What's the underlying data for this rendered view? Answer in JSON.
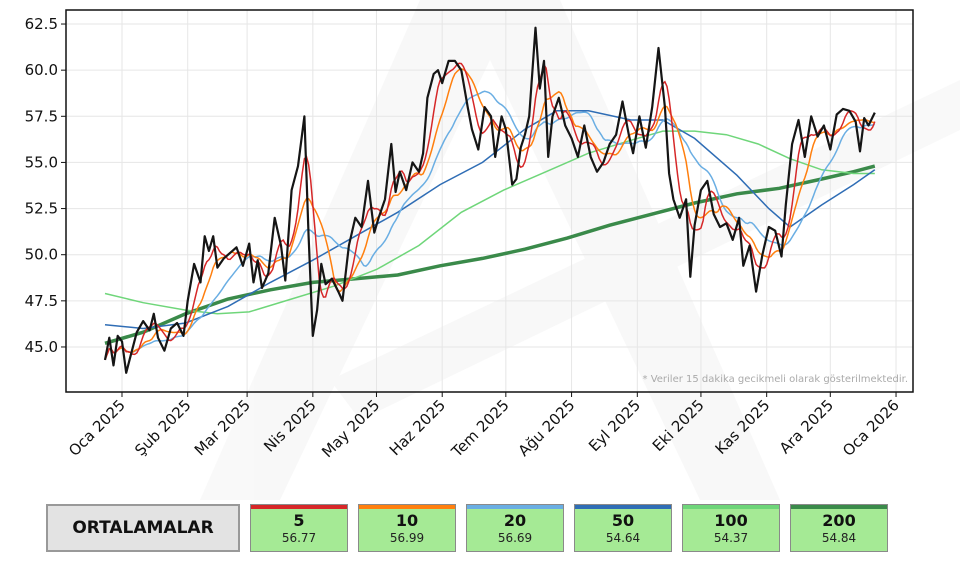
{
  "chart_data": {
    "type": "line",
    "title": "",
    "xlabel": "",
    "ylabel": "",
    "x_unit": "days since 2025-01-01",
    "xlim": [
      -26.4,
      373
    ],
    "ylim": [
      42.56,
      63.26
    ],
    "grid": true,
    "yticks": [
      45.0,
      47.5,
      50.0,
      52.5,
      55.0,
      57.5,
      60.0,
      62.5
    ],
    "ytick_labels": [
      "45.0",
      "47.5",
      "50.0",
      "52.5",
      "55.0",
      "57.5",
      "60.0",
      "62.5"
    ],
    "xticks": [
      0,
      31,
      59,
      90,
      120,
      151,
      181,
      212,
      243,
      273,
      304,
      334,
      365
    ],
    "xtick_labels": [
      "Oca 2025",
      "Şub 2025",
      "Mar 2025",
      "Nis 2025",
      "May 2025",
      "Haz 2025",
      "Tem 2025",
      "Ağu 2025",
      "Eyl 2025",
      "Eki 2025",
      "Kas 2025",
      "Ara 2025",
      "Oca 2026"
    ],
    "note": "* Veriler 15 dakika gecikmeli olarak gösterilmektedir.",
    "close": [
      [
        -8,
        44.3
      ],
      [
        -6,
        45.5
      ],
      [
        -4,
        44
      ],
      [
        -2,
        45.6
      ],
      [
        0,
        45.3
      ],
      [
        2,
        43.6
      ],
      [
        4,
        44.5
      ],
      [
        7,
        45.8
      ],
      [
        10,
        46.4
      ],
      [
        13,
        45.9
      ],
      [
        15,
        46.8
      ],
      [
        17,
        45.5
      ],
      [
        20,
        44.8
      ],
      [
        23,
        46
      ],
      [
        26,
        46.3
      ],
      [
        29,
        45.6
      ],
      [
        31,
        47.5
      ],
      [
        34,
        49.5
      ],
      [
        37,
        48.5
      ],
      [
        39,
        51
      ],
      [
        41,
        50.2
      ],
      [
        43,
        51
      ],
      [
        45,
        49.3
      ],
      [
        48,
        49.8
      ],
      [
        51,
        50.1
      ],
      [
        54,
        50.4
      ],
      [
        57,
        49.4
      ],
      [
        60,
        50.6
      ],
      [
        62,
        48.5
      ],
      [
        64,
        49.7
      ],
      [
        66,
        48.2
      ],
      [
        69,
        49
      ],
      [
        72,
        52
      ],
      [
        75,
        50.5
      ],
      [
        77,
        48.6
      ],
      [
        80,
        53.5
      ],
      [
        83,
        54.8
      ],
      [
        86,
        57.5
      ],
      [
        88,
        51
      ],
      [
        90,
        45.6
      ],
      [
        92,
        47
      ],
      [
        94,
        49.5
      ],
      [
        96,
        48.4
      ],
      [
        99,
        48.7
      ],
      [
        102,
        48
      ],
      [
        104,
        47.5
      ],
      [
        107,
        50.5
      ],
      [
        110,
        52
      ],
      [
        113,
        51.5
      ],
      [
        116,
        54
      ],
      [
        119,
        51.2
      ],
      [
        121,
        52
      ],
      [
        124,
        53
      ],
      [
        127,
        56
      ],
      [
        129,
        53.4
      ],
      [
        131,
        54.5
      ],
      [
        134,
        53.5
      ],
      [
        137,
        55
      ],
      [
        140,
        54.5
      ],
      [
        142,
        55.5
      ],
      [
        144,
        58.5
      ],
      [
        147,
        59.8
      ],
      [
        149,
        60
      ],
      [
        151,
        59.3
      ],
      [
        154,
        60.5
      ],
      [
        157,
        60.5
      ],
      [
        160,
        60
      ],
      [
        163,
        58
      ],
      [
        165,
        56.8
      ],
      [
        168,
        55.7
      ],
      [
        171,
        58
      ],
      [
        174,
        57.5
      ],
      [
        176,
        55.3
      ],
      [
        179,
        57.5
      ],
      [
        181,
        56.8
      ],
      [
        184,
        53.8
      ],
      [
        186,
        54.1
      ],
      [
        188,
        55.8
      ],
      [
        190,
        56.5
      ],
      [
        192,
        57.5
      ],
      [
        195,
        62.3
      ],
      [
        197,
        59
      ],
      [
        199,
        60.5
      ],
      [
        201,
        55.3
      ],
      [
        203,
        57.5
      ],
      [
        206,
        58.5
      ],
      [
        209,
        57
      ],
      [
        212,
        56.3
      ],
      [
        215,
        55.3
      ],
      [
        218,
        57
      ],
      [
        221,
        55.3
      ],
      [
        224,
        54.5
      ],
      [
        227,
        55
      ],
      [
        230,
        56
      ],
      [
        233,
        56.5
      ],
      [
        236,
        58.3
      ],
      [
        239,
        56.5
      ],
      [
        241,
        55.5
      ],
      [
        244,
        57.5
      ],
      [
        247,
        55.8
      ],
      [
        250,
        58
      ],
      [
        253,
        61.2
      ],
      [
        256,
        58
      ],
      [
        258,
        54.4
      ],
      [
        260,
        53
      ],
      [
        263,
        52
      ],
      [
        266,
        53
      ],
      [
        268,
        48.8
      ],
      [
        270,
        51.6
      ],
      [
        273,
        53.5
      ],
      [
        276,
        54
      ],
      [
        279,
        52.2
      ],
      [
        282,
        51.5
      ],
      [
        285,
        51.7
      ],
      [
        288,
        50.8
      ],
      [
        291,
        52
      ],
      [
        293,
        49.4
      ],
      [
        296,
        50.5
      ],
      [
        299,
        48
      ],
      [
        302,
        50
      ],
      [
        305,
        51.5
      ],
      [
        308,
        51.3
      ],
      [
        311,
        49.9
      ],
      [
        313,
        52.7
      ],
      [
        316,
        56
      ],
      [
        319,
        57.3
      ],
      [
        322,
        55.3
      ],
      [
        325,
        57.5
      ],
      [
        328,
        56.4
      ],
      [
        331,
        57
      ],
      [
        334,
        55.7
      ],
      [
        337,
        57.6
      ],
      [
        340,
        57.9
      ],
      [
        343,
        57.8
      ],
      [
        346,
        57.2
      ],
      [
        348,
        55.6
      ],
      [
        350,
        57.4
      ],
      [
        352,
        57
      ],
      [
        355,
        57.7
      ]
    ],
    "series": [
      {
        "name": "5",
        "window": 5,
        "color": "#d62728"
      },
      {
        "name": "10",
        "window": 10,
        "color": "#ff7f0e"
      },
      {
        "name": "20",
        "window": 20,
        "color": "#6aaee3"
      },
      {
        "name": "50",
        "color": "#2f6db5",
        "points": [
          [
            -8,
            46.2
          ],
          [
            10,
            46
          ],
          [
            30,
            46.3
          ],
          [
            50,
            47.2
          ],
          [
            70,
            48.5
          ],
          [
            90,
            49.7
          ],
          [
            110,
            51
          ],
          [
            130,
            52.3
          ],
          [
            150,
            53.8
          ],
          [
            170,
            55
          ],
          [
            190,
            56.8
          ],
          [
            205,
            57.8
          ],
          [
            220,
            57.8
          ],
          [
            240,
            57.3
          ],
          [
            255,
            57.3
          ],
          [
            270,
            56.3
          ],
          [
            290,
            54.3
          ],
          [
            305,
            52.5
          ],
          [
            315,
            51.5
          ],
          [
            330,
            52.7
          ],
          [
            345,
            53.8
          ],
          [
            355,
            54.6
          ]
        ]
      },
      {
        "name": "100",
        "color": "#6fd67a",
        "points": [
          [
            -8,
            47.9
          ],
          [
            10,
            47.4
          ],
          [
            30,
            47
          ],
          [
            45,
            46.8
          ],
          [
            60,
            46.9
          ],
          [
            80,
            47.6
          ],
          [
            100,
            48.3
          ],
          [
            120,
            49.2
          ],
          [
            140,
            50.5
          ],
          [
            160,
            52.3
          ],
          [
            180,
            53.5
          ],
          [
            200,
            54.5
          ],
          [
            220,
            55.5
          ],
          [
            240,
            56.2
          ],
          [
            255,
            56.7
          ],
          [
            270,
            56.7
          ],
          [
            285,
            56.5
          ],
          [
            300,
            56
          ],
          [
            315,
            55.2
          ],
          [
            330,
            54.6
          ],
          [
            345,
            54.4
          ],
          [
            355,
            54.4
          ]
        ]
      },
      {
        "name": "200",
        "color": "#3a8a4a",
        "points": [
          [
            -8,
            45.2
          ],
          [
            10,
            45.8
          ],
          [
            30,
            46.8
          ],
          [
            50,
            47.6
          ],
          [
            70,
            48.1
          ],
          [
            90,
            48.5
          ],
          [
            110,
            48.7
          ],
          [
            130,
            48.9
          ],
          [
            150,
            49.4
          ],
          [
            170,
            49.8
          ],
          [
            190,
            50.3
          ],
          [
            210,
            50.9
          ],
          [
            230,
            51.6
          ],
          [
            250,
            52.2
          ],
          [
            270,
            52.8
          ],
          [
            290,
            53.3
          ],
          [
            310,
            53.6
          ],
          [
            330,
            54.1
          ],
          [
            345,
            54.5
          ],
          [
            355,
            54.8
          ]
        ]
      }
    ]
  },
  "legend": {
    "title": "ORTALAMALAR",
    "items": [
      {
        "period": "5",
        "value": "56.77",
        "color": "#d62728"
      },
      {
        "period": "10",
        "value": "56.99",
        "color": "#ff7f0e"
      },
      {
        "period": "20",
        "value": "56.69",
        "color": "#6aaee3"
      },
      {
        "period": "50",
        "value": "54.64",
        "color": "#2f6db5"
      },
      {
        "period": "100",
        "value": "54.37",
        "color": "#6fd67a"
      },
      {
        "period": "200",
        "value": "54.84",
        "color": "#3a8a4a"
      }
    ]
  }
}
